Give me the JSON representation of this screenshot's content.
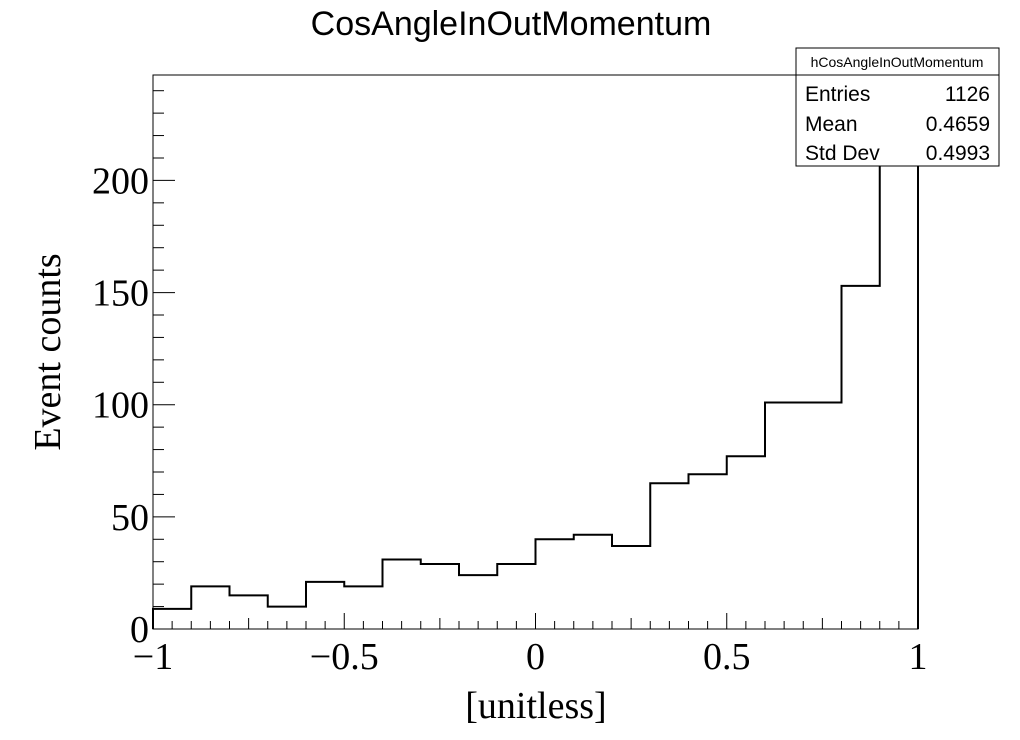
{
  "chart_data": {
    "type": "histogram",
    "title": "CosAngleInOutMomentum",
    "xlabel": "[unitless]",
    "ylabel": "Event counts",
    "xlim": [
      -1,
      1
    ],
    "ylim": [
      0,
      247
    ],
    "bin_edges": [
      -1,
      -0.9,
      -0.8,
      -0.7,
      -0.6,
      -0.5,
      -0.4,
      -0.3,
      -0.2,
      -0.1,
      0,
      0.1,
      0.2,
      0.3,
      0.4,
      0.5,
      0.6,
      0.7,
      0.8,
      0.9,
      1
    ],
    "values": [
      9,
      19,
      15,
      10,
      21,
      19,
      31,
      29,
      24,
      29,
      40,
      42,
      37,
      65,
      69,
      77,
      101,
      101,
      153,
      232
    ],
    "x_ticks": [
      -1,
      -0.5,
      0,
      0.5,
      1
    ],
    "x_tick_labels": [
      "−1",
      "−0.5",
      "0",
      "0.5",
      "1"
    ],
    "y_ticks": [
      0,
      50,
      100,
      150,
      200
    ],
    "y_tick_labels": [
      "0",
      "50",
      "100",
      "150",
      "200"
    ],
    "grid": false,
    "stats_box": {
      "name": "hCosAngleInOutMomentum",
      "placement": "top-right",
      "rows": [
        {
          "label": "Entries",
          "value": "1126"
        },
        {
          "label": "Mean",
          "value": "0.4659"
        },
        {
          "label": "Std Dev",
          "value": "0.4993"
        }
      ]
    }
  }
}
